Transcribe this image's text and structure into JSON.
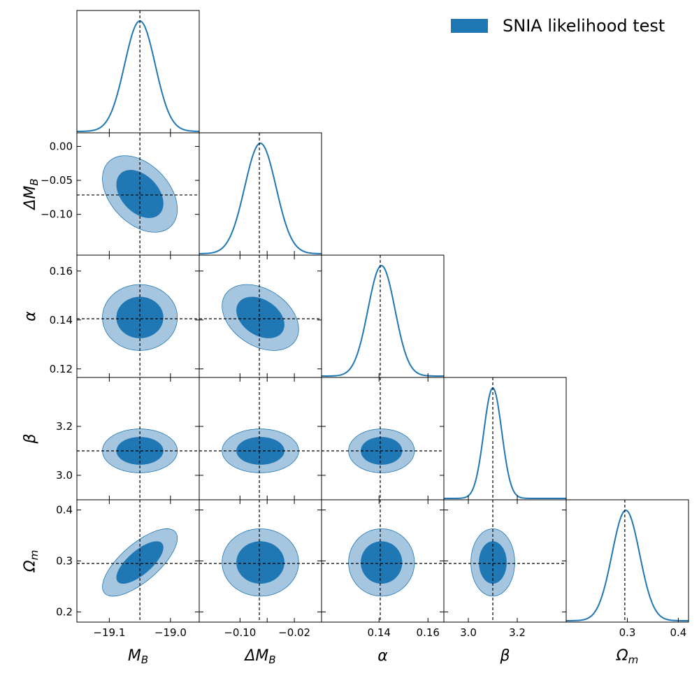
{
  "chart_data": {
    "type": "triangle-corner-plot",
    "legend": {
      "label": "SNIA likelihood test",
      "color": "#1f77b4",
      "placement": "top-right"
    },
    "colors": {
      "line": "#1f77b4",
      "inner": "#1f77b4",
      "outer": "#a6c6e0",
      "truth": "#000000"
    },
    "params": [
      {
        "name": "M_B",
        "sym": "M",
        "sub": "B",
        "mean": -19.05,
        "sd": 0.025,
        "truth": -19.05,
        "range": [
          -19.153,
          -18.953
        ],
        "ticks": [
          -19.1,
          -19.0
        ],
        "tick_labels": [
          "−19.1",
          "−19.0"
        ]
      },
      {
        "name": "Delta_M_B",
        "sym": "ΔM",
        "sub": "B",
        "mean": -0.07,
        "sd": 0.023,
        "truth": -0.0715,
        "range": [
          -0.16,
          0.02
        ],
        "ticks": [
          -0.1,
          -0.05,
          0.0
        ],
        "x_tick_labels": [
          "−0.10",
          "",
          "−0.02"
        ],
        "x_ticks": [
          -0.1,
          -0.06,
          -0.02
        ],
        "y_ticks": [
          0.0,
          -0.05,
          -0.1
        ],
        "y_tick_labels": [
          "0.00",
          "−0.05",
          "−0.10"
        ]
      },
      {
        "name": "alpha",
        "sym": "α",
        "sub": "",
        "mean": 0.141,
        "sd": 0.0055,
        "truth": 0.1405,
        "range": [
          0.1165,
          0.1665
        ],
        "x_ticks": [
          0.14,
          0.16
        ],
        "x_tick_labels": [
          "0.14",
          "0.16"
        ],
        "y_ticks": [
          0.16,
          0.14,
          0.12
        ],
        "y_tick_labels": [
          "0.16",
          "0.14",
          "0.12"
        ]
      },
      {
        "name": "beta",
        "sym": "β",
        "sub": "",
        "mean": 3.1,
        "sd": 0.0366,
        "truth": 3.1,
        "range": [
          2.9,
          3.4
        ],
        "x_ticks": [
          3.0,
          3.2
        ],
        "x_tick_labels": [
          "3.0",
          "3.2"
        ],
        "y_ticks": [
          3.2,
          3.0
        ],
        "y_tick_labels": [
          "3.2",
          "3.0"
        ]
      },
      {
        "name": "Omega_m",
        "sym": "Ω",
        "sub": "m",
        "mean": 0.297,
        "sd": 0.027,
        "truth": 0.295,
        "range": [
          0.18,
          0.42
        ],
        "x_ticks": [
          0.3,
          0.4
        ],
        "x_tick_labels": [
          "0.3",
          "0.4"
        ],
        "y_ticks": [
          0.4,
          0.3,
          0.2
        ],
        "y_tick_labels": [
          "0.4",
          "0.3",
          "0.2"
        ]
      }
    ],
    "correlations": {
      "1-0": -0.4,
      "2-0": 0.0,
      "2-1": -0.35,
      "3-0": 0.0,
      "3-1": 0.0,
      "3-2": 0.0,
      "4-0": 0.72,
      "4-1": 0.0,
      "4-2": 0.0,
      "4-3": 0.0
    },
    "contour_levels": [
      "68%",
      "95%"
    ],
    "grid": false
  }
}
